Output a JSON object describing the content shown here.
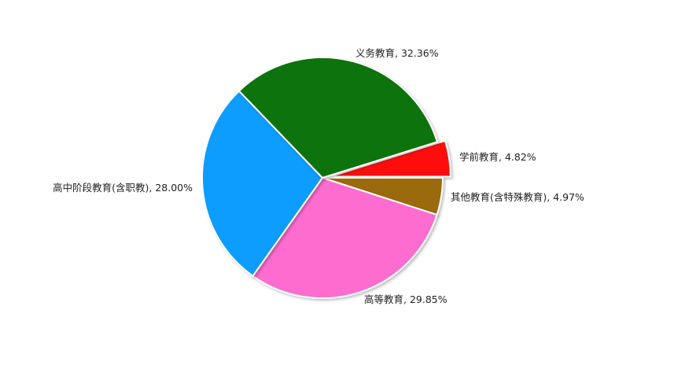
{
  "chart_data": {
    "type": "pie",
    "slices": [
      {
        "name": "学前教育",
        "value": 4.82,
        "color": "#ff0d0d",
        "exploded": true
      },
      {
        "name": "其他教育(含特殊教育)",
        "value": 4.97,
        "color": "#9a6a0c",
        "exploded": false
      },
      {
        "name": "高等教育",
        "value": 29.85,
        "color": "#ff6ccf",
        "exploded": false
      },
      {
        "name": "高中阶段教育(含职教)",
        "value": 28.0,
        "color": "#0e9cff",
        "exploded": false
      },
      {
        "name": "义务教育",
        "value": 32.36,
        "color": "#0d730d",
        "exploded": false
      }
    ],
    "label_format": "name, percent",
    "legend": "none"
  }
}
